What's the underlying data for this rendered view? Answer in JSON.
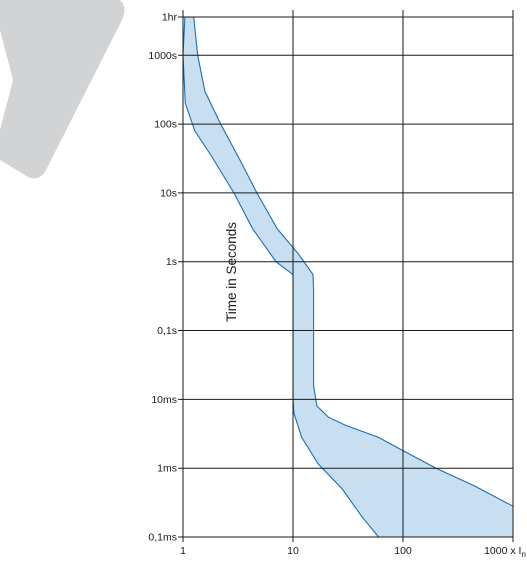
{
  "chart_data": {
    "type": "area",
    "title": "",
    "ylabel": "Time in Seconds",
    "xlabel": "",
    "x_scale": "log",
    "y_scale": "log",
    "xlim": [
      1,
      1000
    ],
    "ylim": [
      0.0001,
      3600
    ],
    "grid": true,
    "x_ticks": [
      {
        "value": 1,
        "label": "1"
      },
      {
        "value": 10,
        "label": "10"
      },
      {
        "value": 100,
        "label": "100"
      },
      {
        "value": 1000,
        "label": "1000 x I"
      }
    ],
    "x_last_tick_subscript": "n",
    "y_ticks": [
      {
        "value": 3600,
        "label": "1hr"
      },
      {
        "value": 1000,
        "label": "1000s"
      },
      {
        "value": 100,
        "label": "100s"
      },
      {
        "value": 10,
        "label": "10s"
      },
      {
        "value": 1,
        "label": "1s"
      },
      {
        "value": 0.1,
        "label": "0,1s"
      },
      {
        "value": 0.01,
        "label": "10ms"
      },
      {
        "value": 0.001,
        "label": "1ms"
      },
      {
        "value": 0.0001,
        "label": "0,1ms"
      }
    ],
    "series": [
      {
        "role": "band-upper-boundary",
        "points": [
          [
            1.25,
            3600
          ],
          [
            1.36,
            1000
          ],
          [
            1.58,
            300
          ],
          [
            2.2,
            100
          ],
          [
            3.3,
            30
          ],
          [
            4.7,
            10
          ],
          [
            7.2,
            3
          ],
          [
            11.2,
            1.3
          ],
          [
            15.2,
            0.65
          ],
          [
            15.4,
            0.4
          ],
          [
            15.4,
            0.1
          ],
          [
            15.4,
            0.0158
          ],
          [
            16.5,
            0.008
          ],
          [
            21,
            0.0055
          ],
          [
            30,
            0.0042
          ],
          [
            60,
            0.0028
          ],
          [
            100,
            0.0018
          ],
          [
            200,
            0.001
          ],
          [
            450,
            0.00055
          ],
          [
            1000,
            0.00028
          ]
        ]
      },
      {
        "role": "band-lower-boundary",
        "points": [
          [
            1.04,
            3600
          ],
          [
            1.0,
            1000
          ],
          [
            1.05,
            200
          ],
          [
            1.28,
            80
          ],
          [
            1.8,
            35
          ],
          [
            2.9,
            10
          ],
          [
            4.3,
            3
          ],
          [
            7,
            1
          ],
          [
            10,
            0.65
          ],
          [
            10,
            0.1
          ],
          [
            10,
            0.01
          ],
          [
            10.2,
            0.0063
          ],
          [
            12,
            0.0028
          ],
          [
            17,
            0.00115
          ],
          [
            28,
            0.0005
          ],
          [
            42,
            0.0002
          ],
          [
            60,
            0.0001
          ]
        ]
      }
    ],
    "colors": {
      "band_fill": "#c7dff0",
      "band_stroke": "#1a6fb4",
      "grid": "#1a1a1a",
      "watermark": "#d2d3d4"
    }
  }
}
